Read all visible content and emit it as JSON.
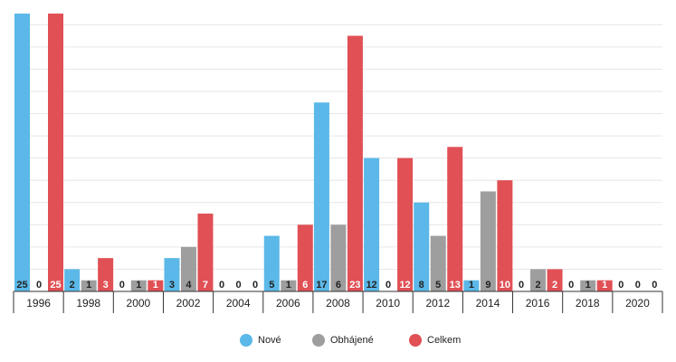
{
  "chart_data": {
    "type": "bar",
    "categories": [
      "1996",
      "1998",
      "2000",
      "2002",
      "2004",
      "2006",
      "2008",
      "2010",
      "2012",
      "2014",
      "2016",
      "2018",
      "2020"
    ],
    "series": [
      {
        "name": "Nové",
        "color": "#5bb8e8",
        "values": [
          25,
          2,
          0,
          3,
          0,
          5,
          17,
          12,
          8,
          1,
          0,
          0,
          0
        ]
      },
      {
        "name": "Obhájené",
        "color": "#9e9e9e",
        "values": [
          0,
          1,
          1,
          4,
          0,
          1,
          6,
          0,
          5,
          9,
          2,
          1,
          0
        ]
      },
      {
        "name": "Celkem",
        "color": "#e05055",
        "values": [
          25,
          3,
          1,
          7,
          0,
          6,
          23,
          12,
          13,
          10,
          2,
          1,
          0
        ]
      }
    ],
    "ylim": [
      0,
      25
    ],
    "yticks": [
      0,
      2,
      4,
      6,
      8,
      10,
      12,
      14,
      16,
      18,
      20,
      22,
      24
    ],
    "grid": true
  }
}
